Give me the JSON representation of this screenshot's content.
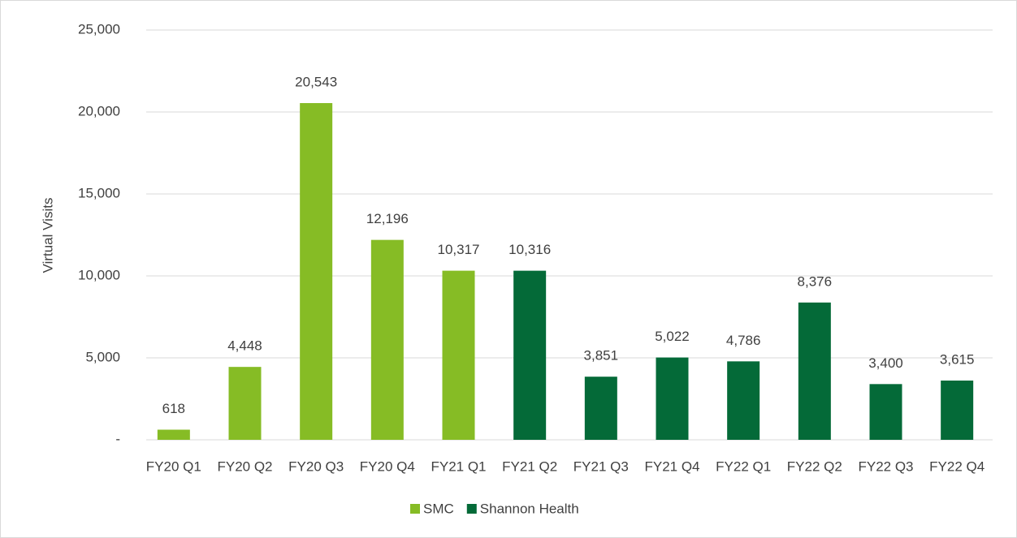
{
  "chart_data": {
    "type": "bar",
    "y_label": "Virtual Visits",
    "categories": [
      "FY20 Q1",
      "FY20 Q2",
      "FY20 Q3",
      "FY20 Q4",
      "FY21 Q1",
      "FY21 Q2",
      "FY21 Q3",
      "FY21 Q4",
      "FY22 Q1",
      "FY22 Q2",
      "FY22 Q3",
      "FY22 Q4"
    ],
    "series": [
      {
        "name": "SMC",
        "color": "#86bc25",
        "values": [
          618,
          4448,
          20543,
          12196,
          10317,
          null,
          null,
          null,
          null,
          null,
          null,
          null
        ],
        "value_labels": [
          "618",
          "4,448",
          "20,543",
          "12,196",
          "10,317",
          null,
          null,
          null,
          null,
          null,
          null,
          null
        ]
      },
      {
        "name": "Shannon Health",
        "color": "#046a38",
        "values": [
          null,
          null,
          null,
          null,
          null,
          10316,
          3851,
          5022,
          4786,
          8376,
          3400,
          3615
        ],
        "value_labels": [
          null,
          null,
          null,
          null,
          null,
          "10,316",
          "3,851",
          "5,022",
          "4,786",
          "8,376",
          "3,400",
          "3,615"
        ]
      }
    ],
    "ylim": [
      0,
      25000
    ],
    "yticks": [
      {
        "value": 0,
        "label": "-"
      },
      {
        "value": 5000,
        "label": "5,000"
      },
      {
        "value": 10000,
        "label": "10,000"
      },
      {
        "value": 15000,
        "label": "15,000"
      },
      {
        "value": 20000,
        "label": "20,000"
      },
      {
        "value": 25000,
        "label": "25,000"
      }
    ],
    "grid": true,
    "legend": "bottom"
  }
}
